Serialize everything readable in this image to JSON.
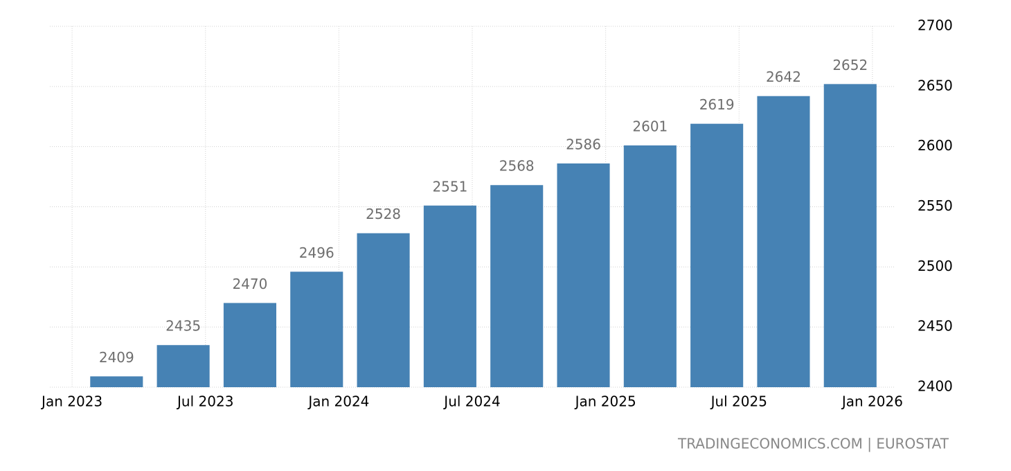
{
  "chart_data": {
    "type": "bar",
    "x": [
      "2023-03",
      "2023-06",
      "2023-09",
      "2023-12",
      "2024-03",
      "2024-06",
      "2024-09",
      "2024-12",
      "2025-03",
      "2025-06",
      "2025-09",
      "2025-12"
    ],
    "values": [
      2409,
      2435,
      2470,
      2496,
      2528,
      2551,
      2568,
      2586,
      2601,
      2619,
      2642,
      2652
    ],
    "color": "#4682b4",
    "xlim": [
      "2022-12",
      "2026-02"
    ],
    "xticks": [
      {
        "value": "2023-01",
        "label": "Jan 2023"
      },
      {
        "value": "2023-07",
        "label": "Jul 2023"
      },
      {
        "value": "2024-01",
        "label": "Jan 2024"
      },
      {
        "value": "2024-07",
        "label": "Jul 2024"
      },
      {
        "value": "2025-01",
        "label": "Jan 2025"
      },
      {
        "value": "2025-07",
        "label": "Jul 2025"
      },
      {
        "value": "2026-01",
        "label": "Jan 2026"
      }
    ],
    "ylim": [
      2400,
      2700
    ],
    "yticks": [
      2400,
      2450,
      2500,
      2550,
      2600,
      2650,
      2700
    ],
    "grid": true,
    "source": "TRADINGECONOMICS.COM | EUROSTAT"
  }
}
